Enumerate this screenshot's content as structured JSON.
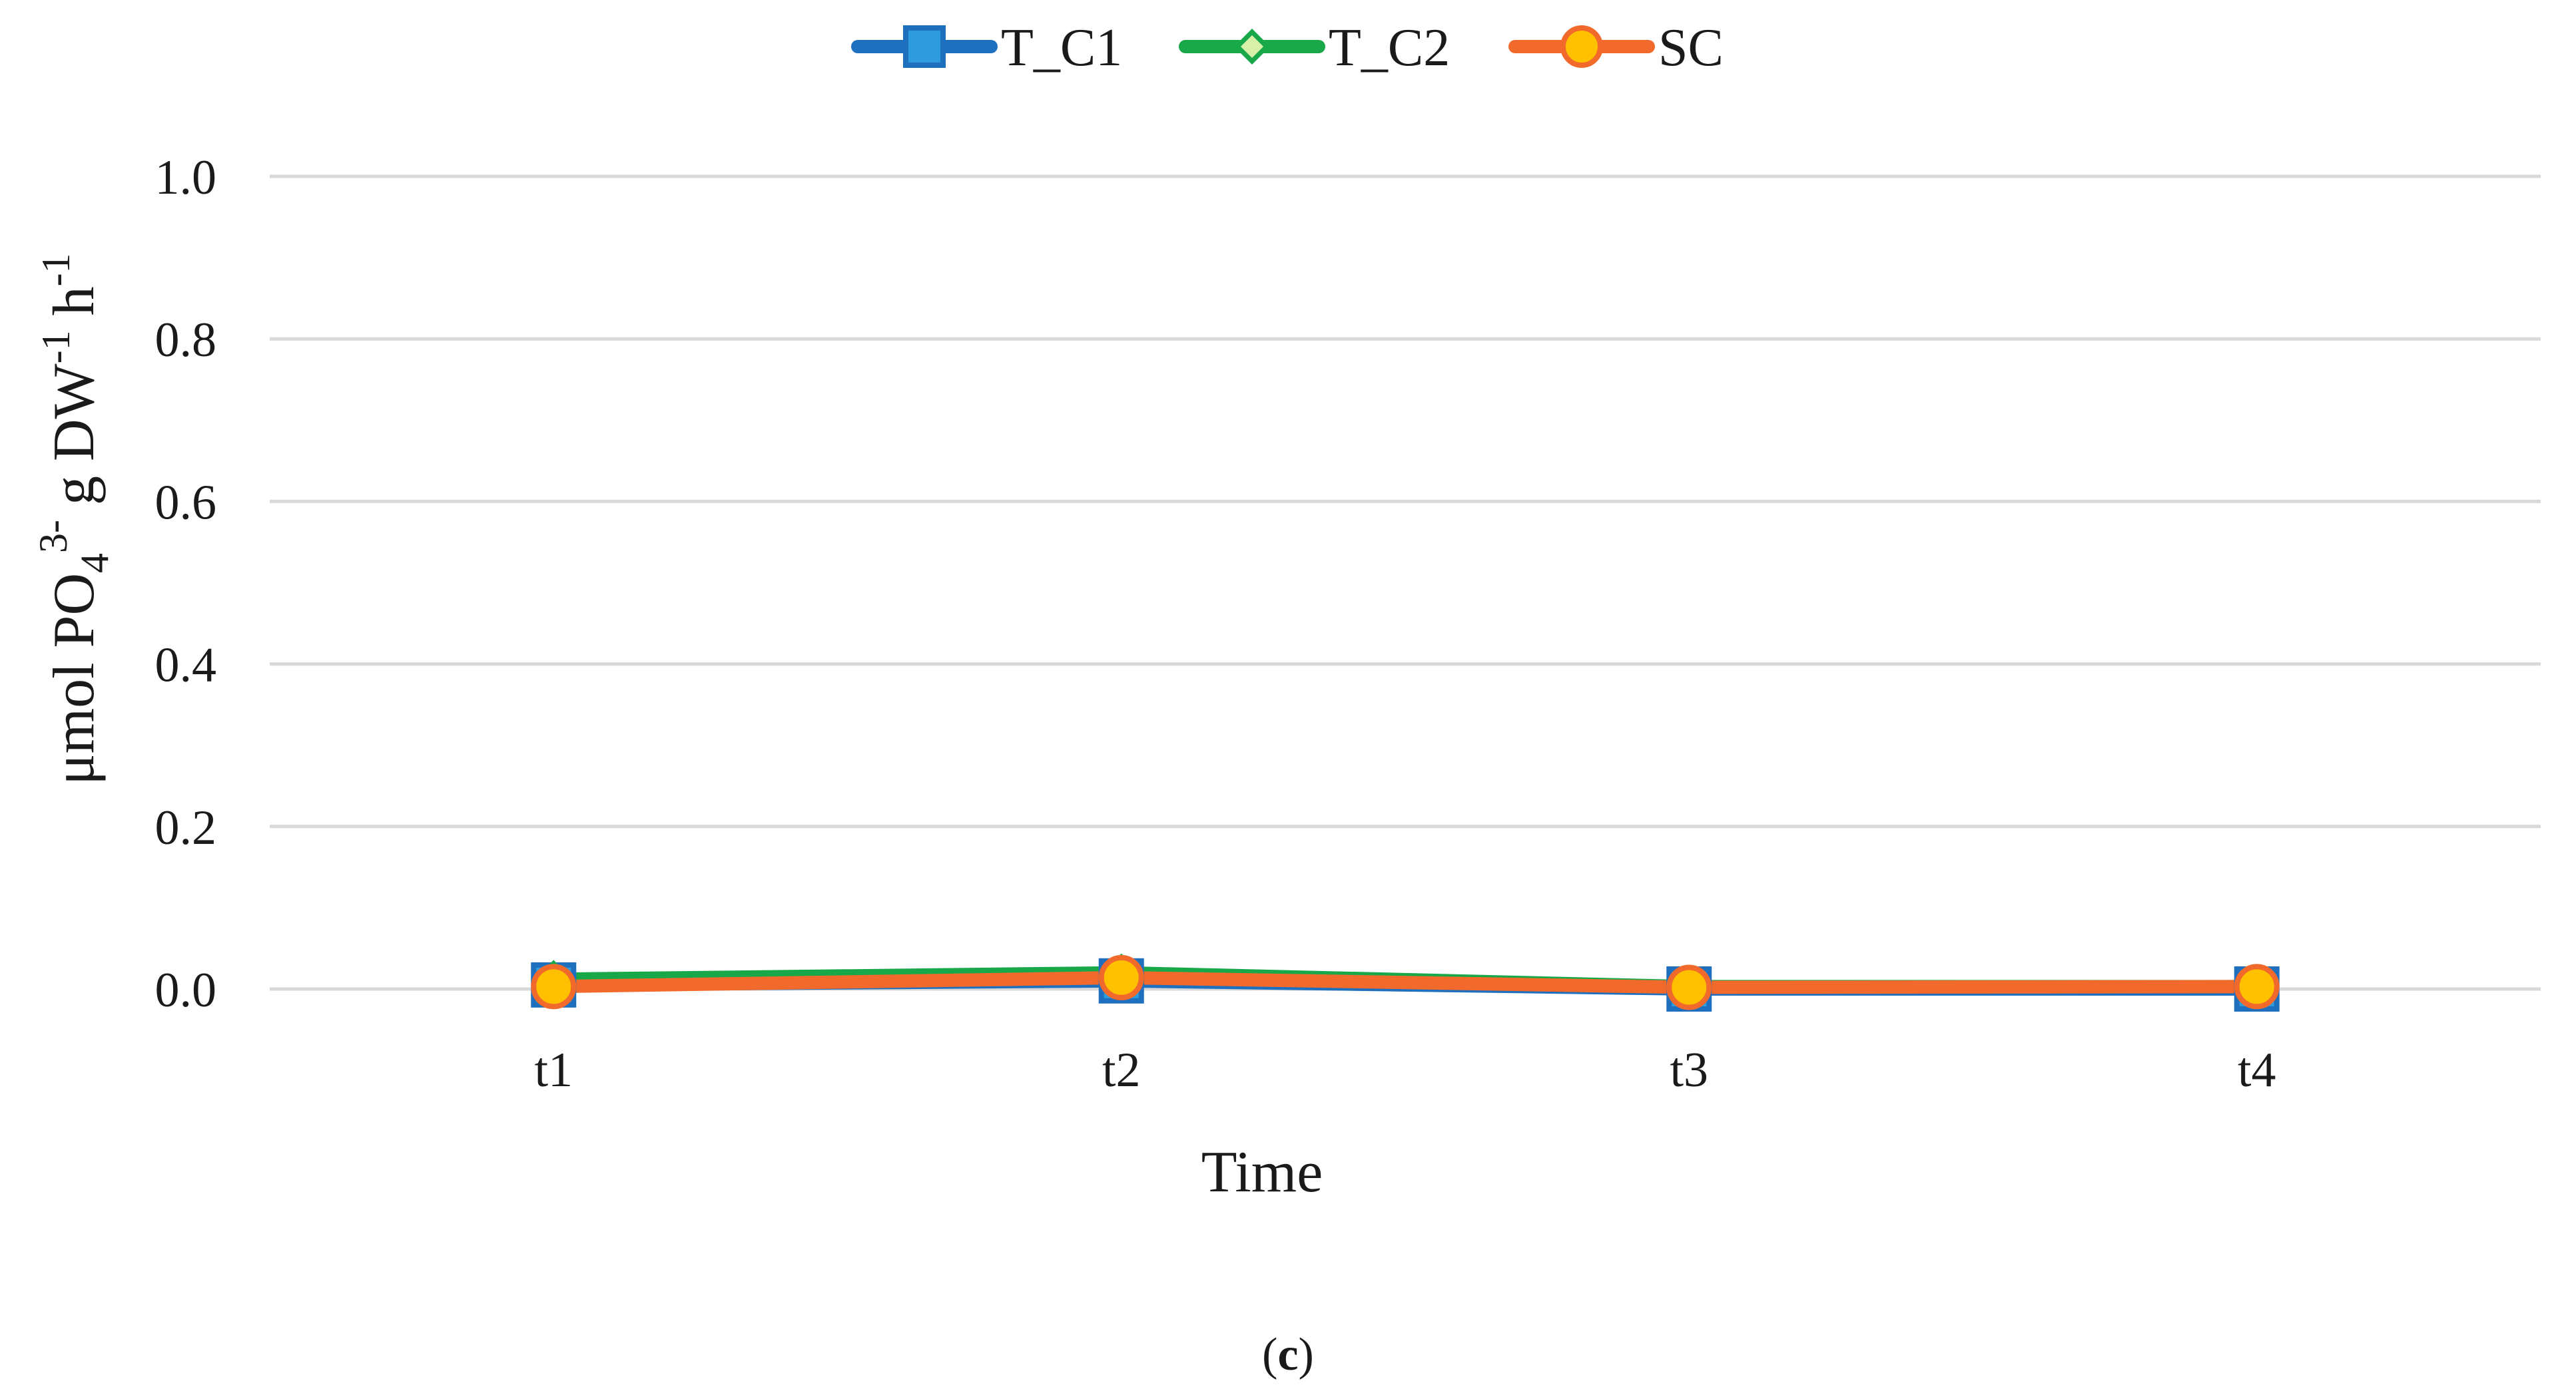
{
  "chart_data": {
    "type": "line",
    "categories": [
      "t1",
      "t2",
      "t3",
      "t4"
    ],
    "series": [
      {
        "name": "T_C1",
        "values": [
          0.005,
          0.01,
          0.0,
          0.0
        ],
        "color": "#1f6fbf",
        "marker_fill": "#2e9bdc",
        "marker": "square"
      },
      {
        "name": "T_C2",
        "values": [
          0.012,
          0.02,
          0.003,
          0.003
        ],
        "color": "#18a84a",
        "marker_fill": "#d8f0a8",
        "marker": "diamond"
      },
      {
        "name": "SC",
        "values": [
          0.003,
          0.014,
          0.002,
          0.003
        ],
        "color": "#f26a2b",
        "marker_fill": "#ffc000",
        "marker": "circle"
      }
    ],
    "xlabel": "Time",
    "ylabel": {
      "prefix": "μmol PO",
      "sub": "4",
      "sup": "3-",
      "mid": " g DW",
      "sup2": "-1",
      "mid2": " h",
      "sup3": "-1"
    },
    "ylim": [
      0,
      1.0
    ],
    "yticks": [
      "0.0",
      "0.2",
      "0.4",
      "0.6",
      "0.8",
      "1.0"
    ],
    "grid": true,
    "legend_position": "top-center"
  },
  "caption": {
    "open": "(",
    "letter": "c",
    "close": ")"
  }
}
